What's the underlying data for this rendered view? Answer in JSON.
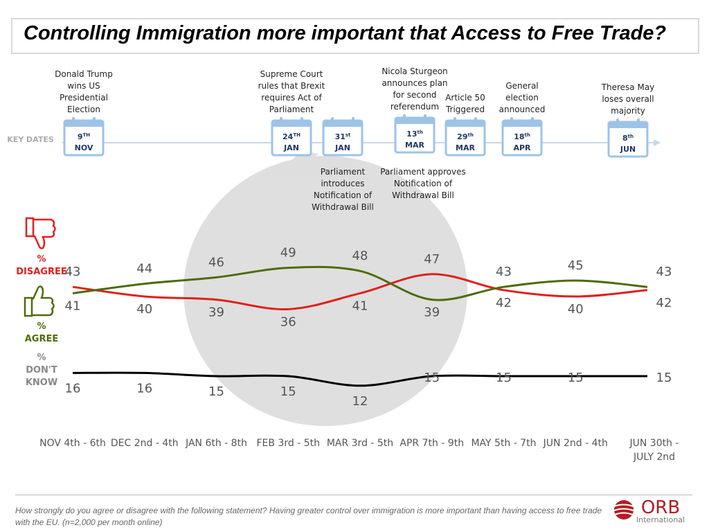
{
  "chart_data": {
    "type": "line",
    "title": "Controlling Immigration more important that Access to Free Trade?",
    "categories": [
      "NOV 4th - 6th",
      "DEC 2nd - 4th",
      "JAN 6th - 8th",
      "FEB 3rd - 5th",
      "MAR 3rd - 5th",
      "APR 7th - 9th",
      "MAY 5th - 7th",
      "JUN 2nd - 4th",
      "JUN 30th - JULY 2nd"
    ],
    "series": [
      {
        "name": "% DISAGREE",
        "color": "#e0201b",
        "values": [
          43,
          40,
          39,
          36,
          41,
          47,
          42,
          40,
          42
        ]
      },
      {
        "name": "% AGREE",
        "color": "#4e6b0b",
        "values": [
          41,
          44,
          46,
          49,
          48,
          39,
          43,
          45,
          43
        ]
      },
      {
        "name": "% DON'T KNOW",
        "color": "#000000",
        "values": [
          16,
          16,
          15,
          15,
          12,
          15,
          15,
          15,
          15
        ]
      }
    ]
  },
  "key_dates": {
    "label": "KEY DATES",
    "events": [
      {
        "above": [
          "Donald Trump",
          "wins US",
          "Presidential",
          "Election"
        ],
        "day": "9",
        "suffix": "TH",
        "month": "NOV"
      },
      {
        "above": [
          "Supreme Court",
          "rules that Brexit",
          "requires Act of",
          "Parliament"
        ],
        "day": "24",
        "suffix": "TH",
        "month": "JAN"
      },
      {
        "below": [
          "Parliament",
          "introduces",
          "Notification of",
          "Withdrawal Bill"
        ],
        "day": "31",
        "suffix": "st",
        "month": "JAN"
      },
      {
        "above": [
          "Nicola Sturgeon",
          "announces plan",
          "for second",
          "referendum"
        ],
        "below": [
          "Parliament approves",
          "Notification of",
          "Withdrawal Bill"
        ],
        "day": "13",
        "suffix": "th",
        "month": "MAR"
      },
      {
        "above": [
          "Article 50",
          "Triggered"
        ],
        "day": "29",
        "suffix": "th",
        "month": "MAR"
      },
      {
        "above": [
          "General",
          "election",
          "announced"
        ],
        "day": "18",
        "suffix": "th",
        "month": "APR"
      },
      {
        "above": [
          "Theresa May",
          "loses overall",
          "majority"
        ],
        "day": "8",
        "suffix": "th",
        "month": "JUN"
      }
    ]
  },
  "footnote": "How strongly do you agree or disagree with the following statement?  Having greater control over immigration is more important than having access to free trade with the EU. (n=2,000 per month online)",
  "logo": {
    "name": "ORB",
    "subtitle": "International"
  }
}
